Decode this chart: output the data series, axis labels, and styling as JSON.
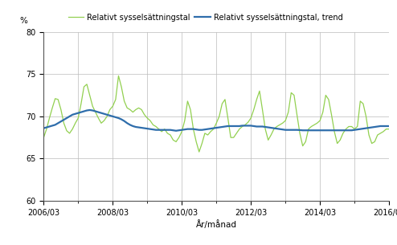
{
  "ylabel": "%",
  "xlabel": "År/månad",
  "ylim": [
    60,
    80
  ],
  "yticks": [
    60,
    65,
    70,
    75,
    80
  ],
  "xtick_labels": [
    "2006/03",
    "2008/03",
    "2010/03",
    "2012/03",
    "2014/03",
    "2016/03"
  ],
  "legend_label_green": "Relativt sysselsättningstal",
  "legend_label_blue": "Relativt sysselsättningstal, trend",
  "green_color": "#92d050",
  "blue_color": "#2e6dab",
  "background_color": "#ffffff",
  "grid_color": "#bbbbbb",
  "raw_values": [
    67.5,
    68.5,
    69.8,
    71.0,
    72.1,
    72.0,
    70.8,
    69.2,
    68.3,
    68.0,
    68.5,
    69.2,
    69.8,
    71.5,
    73.5,
    73.8,
    72.5,
    71.2,
    70.5,
    69.8,
    69.2,
    69.5,
    70.0,
    70.8,
    71.2,
    72.0,
    74.8,
    73.5,
    71.8,
    71.0,
    70.8,
    70.5,
    70.8,
    71.0,
    70.8,
    70.2,
    69.8,
    69.5,
    69.0,
    68.8,
    68.5,
    68.2,
    68.5,
    68.0,
    67.8,
    67.2,
    67.0,
    67.5,
    68.2,
    69.5,
    71.8,
    70.8,
    68.5,
    67.0,
    65.8,
    66.8,
    68.0,
    67.8,
    68.2,
    68.5,
    69.2,
    70.0,
    71.5,
    72.0,
    69.8,
    67.5,
    67.5,
    68.0,
    68.5,
    68.8,
    69.0,
    69.3,
    69.8,
    70.8,
    72.0,
    73.0,
    70.8,
    68.5,
    67.2,
    67.8,
    68.5,
    68.8,
    69.0,
    69.2,
    69.5,
    70.5,
    72.8,
    72.5,
    70.2,
    68.0,
    66.5,
    67.0,
    68.5,
    68.8,
    69.0,
    69.2,
    69.5,
    70.5,
    72.5,
    72.0,
    70.2,
    68.2,
    66.8,
    67.2,
    68.0,
    68.5,
    68.8,
    68.8,
    68.5,
    68.8,
    71.8,
    71.5,
    70.0,
    67.8,
    66.8,
    67.0,
    67.8,
    68.0,
    68.2,
    68.5,
    68.5,
    69.0,
    69.2,
    69.5
  ],
  "trend_values": [
    68.6,
    68.7,
    68.8,
    68.9,
    69.0,
    69.2,
    69.4,
    69.6,
    69.8,
    70.0,
    70.2,
    70.3,
    70.4,
    70.5,
    70.6,
    70.7,
    70.75,
    70.7,
    70.6,
    70.5,
    70.4,
    70.3,
    70.2,
    70.1,
    70.0,
    69.9,
    69.8,
    69.65,
    69.45,
    69.2,
    69.0,
    68.85,
    68.75,
    68.7,
    68.65,
    68.6,
    68.55,
    68.5,
    68.45,
    68.4,
    68.4,
    68.4,
    68.4,
    68.4,
    68.4,
    68.35,
    68.3,
    68.35,
    68.4,
    68.45,
    68.5,
    68.5,
    68.5,
    68.45,
    68.4,
    68.4,
    68.45,
    68.5,
    68.55,
    68.6,
    68.65,
    68.7,
    68.75,
    68.8,
    68.85,
    68.85,
    68.85,
    68.85,
    68.85,
    68.9,
    68.9,
    68.9,
    68.9,
    68.85,
    68.8,
    68.8,
    68.8,
    68.75,
    68.7,
    68.65,
    68.6,
    68.55,
    68.5,
    68.45,
    68.4,
    68.4,
    68.4,
    68.4,
    68.4,
    68.38,
    68.35,
    68.35,
    68.35,
    68.35,
    68.35,
    68.35,
    68.35,
    68.35,
    68.35,
    68.35,
    68.35,
    68.35,
    68.35,
    68.35,
    68.35,
    68.35,
    68.35,
    68.35,
    68.4,
    68.45,
    68.5,
    68.55,
    68.6,
    68.65,
    68.7,
    68.75,
    68.8,
    68.85,
    68.85,
    68.85,
    68.85,
    68.85,
    68.85,
    68.85
  ]
}
